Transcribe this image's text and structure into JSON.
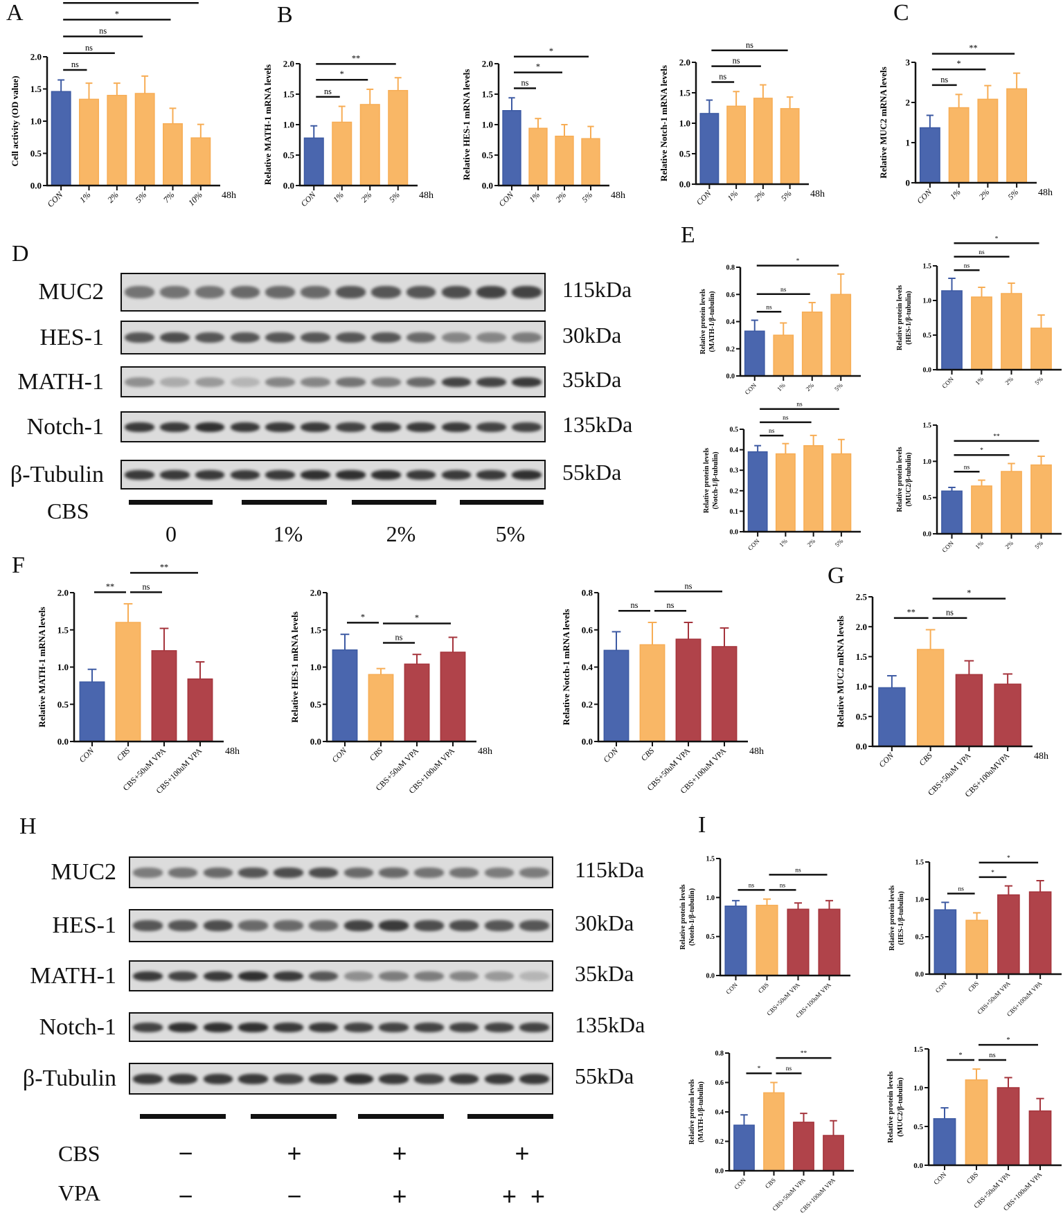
{
  "panel_labels": {
    "A": "A",
    "B": "B",
    "C": "C",
    "D": "D",
    "E": "E",
    "F": "F",
    "G": "G",
    "H": "H",
    "I": "I"
  },
  "colors": {
    "control": "#4a66ae",
    "cbs": "#f9b766",
    "vpa": "#b0434a"
  },
  "chart_data": [
    {
      "id": "A-cell-activity",
      "type": "bar",
      "ylabel": [
        "Cell activity  (OD value)"
      ],
      "categories": [
        "CON",
        "1%",
        "2%",
        "5%",
        "7%",
        "10%"
      ],
      "values": [
        1.46,
        1.34,
        1.4,
        1.43,
        0.96,
        0.74
      ],
      "errors": [
        0.18,
        0.25,
        0.19,
        0.27,
        0.24,
        0.21
      ],
      "bar_colors": [
        "control",
        "cbs",
        "cbs",
        "cbs",
        "cbs",
        "cbs"
      ],
      "ylim": [
        0,
        2
      ],
      "yticks": [
        0,
        0.5,
        1,
        1.5,
        2
      ],
      "ytick_labels": [
        "0.0",
        "0.5",
        "1.0",
        "1.5",
        "2.0"
      ],
      "brackets": [
        [
          0,
          1,
          "ns"
        ],
        [
          0,
          2,
          "ns"
        ],
        [
          0,
          3,
          "ns"
        ],
        [
          0,
          4,
          "*"
        ],
        [
          0,
          5,
          "**"
        ]
      ],
      "suffix": "48h"
    },
    {
      "id": "B-math1-mrna",
      "type": "bar",
      "ylabel": [
        "Relative MATH-1 mRNA levels"
      ],
      "categories": [
        "CON",
        "1%",
        "2%",
        "5%"
      ],
      "values": [
        0.78,
        1.04,
        1.33,
        1.56
      ],
      "errors": [
        0.2,
        0.26,
        0.25,
        0.21
      ],
      "bar_colors": [
        "control",
        "cbs",
        "cbs",
        "cbs"
      ],
      "ylim": [
        0,
        2
      ],
      "yticks": [
        0,
        0.5,
        1,
        1.5,
        2
      ],
      "ytick_labels": [
        "0.0",
        "0.5",
        "1.0",
        "1.5",
        "2.0"
      ],
      "brackets": [
        [
          0,
          1,
          "ns"
        ],
        [
          0,
          2,
          "*"
        ],
        [
          0,
          3,
          "**"
        ]
      ],
      "suffix": "48h"
    },
    {
      "id": "B-hes1-mrna",
      "type": "bar",
      "ylabel": [
        "Relative  HES-1 mRNA levels"
      ],
      "categories": [
        "CON",
        "1%",
        "2%",
        "5%"
      ],
      "values": [
        1.23,
        0.94,
        0.81,
        0.77
      ],
      "errors": [
        0.21,
        0.16,
        0.19,
        0.2
      ],
      "bar_colors": [
        "control",
        "cbs",
        "cbs",
        "cbs"
      ],
      "ylim": [
        0,
        2
      ],
      "yticks": [
        0,
        0.5,
        1,
        1.5,
        2
      ],
      "ytick_labels": [
        "0.0",
        "0.5",
        "1.0",
        "1.5",
        "2.0"
      ],
      "brackets": [
        [
          0,
          1,
          "ns"
        ],
        [
          0,
          2,
          "*"
        ],
        [
          0,
          3,
          "*"
        ]
      ],
      "suffix": "48h"
    },
    {
      "id": "B-notch1-mrna",
      "type": "bar",
      "ylabel": [
        "Relative  Notch-1 mRNA levels"
      ],
      "categories": [
        "CON",
        "1%",
        "2%",
        "5%"
      ],
      "values": [
        1.16,
        1.28,
        1.41,
        1.24
      ],
      "errors": [
        0.22,
        0.24,
        0.22,
        0.19
      ],
      "bar_colors": [
        "control",
        "cbs",
        "cbs",
        "cbs"
      ],
      "ylim": [
        0,
        2
      ],
      "yticks": [
        0,
        0.5,
        1,
        1.5,
        2
      ],
      "ytick_labels": [
        "0.0",
        "0.5",
        "1.0",
        "1.5",
        "2.0"
      ],
      "brackets": [
        [
          0,
          1,
          "ns"
        ],
        [
          0,
          2,
          "ns"
        ],
        [
          0,
          3,
          "ns"
        ]
      ],
      "suffix": "48h"
    },
    {
      "id": "C-muc2-mrna",
      "type": "bar",
      "ylabel": [
        "Relative  MUC2 mRNA levels"
      ],
      "categories": [
        "CON",
        "1%",
        "2%",
        "5%"
      ],
      "values": [
        1.37,
        1.87,
        2.08,
        2.34
      ],
      "errors": [
        0.31,
        0.33,
        0.34,
        0.39
      ],
      "bar_colors": [
        "control",
        "cbs",
        "cbs",
        "cbs"
      ],
      "ylim": [
        0,
        3
      ],
      "yticks": [
        0,
        1,
        2,
        3
      ],
      "ytick_labels": [
        "0",
        "1",
        "2",
        "3"
      ],
      "brackets": [
        [
          0,
          1,
          "ns"
        ],
        [
          0,
          2,
          "*"
        ],
        [
          0,
          3,
          "**"
        ]
      ],
      "suffix": "48h"
    },
    {
      "id": "E-math1-protein",
      "type": "bar",
      "ylabel": [
        "Relative  protein  levels",
        "(MATH-1/β-tubulin)"
      ],
      "categories": [
        "CON",
        "1%",
        "2%",
        "5%"
      ],
      "values": [
        0.33,
        0.3,
        0.47,
        0.6
      ],
      "errors": [
        0.08,
        0.09,
        0.07,
        0.15
      ],
      "bar_colors": [
        "control",
        "cbs",
        "cbs",
        "cbs"
      ],
      "ylim": [
        0,
        0.8
      ],
      "yticks": [
        0,
        0.2,
        0.4,
        0.6,
        0.8
      ],
      "ytick_labels": [
        "0.0",
        "0.2",
        "0.4",
        "0.6",
        "0.8"
      ],
      "brackets": [
        [
          0,
          1,
          "ns"
        ],
        [
          0,
          2,
          "ns"
        ],
        [
          0,
          3,
          "*"
        ]
      ],
      "suffix": ""
    },
    {
      "id": "E-hes1-protein",
      "type": "bar",
      "ylabel": [
        "Relative  protein  levels",
        "(HES-1/β-tubulin)"
      ],
      "categories": [
        "CON",
        "1%",
        "2%",
        "5%"
      ],
      "values": [
        1.14,
        1.05,
        1.1,
        0.6
      ],
      "errors": [
        0.18,
        0.14,
        0.15,
        0.19
      ],
      "bar_colors": [
        "control",
        "cbs",
        "cbs",
        "cbs"
      ],
      "ylim": [
        0,
        1.5
      ],
      "yticks": [
        0,
        0.5,
        1,
        1.5
      ],
      "ytick_labels": [
        "0.0",
        "0.5",
        "1.0",
        "1.5"
      ],
      "brackets": [
        [
          0,
          1,
          "ns"
        ],
        [
          0,
          2,
          "ns"
        ],
        [
          0,
          3,
          "*"
        ]
      ],
      "suffix": ""
    },
    {
      "id": "E-notch1-protein",
      "type": "bar",
      "ylabel": [
        "Relative  protein  levels",
        "(Notch-1/β-tubulin)"
      ],
      "categories": [
        "CON",
        "1%",
        "2%",
        "5%"
      ],
      "values": [
        0.39,
        0.38,
        0.42,
        0.38
      ],
      "errors": [
        0.03,
        0.05,
        0.05,
        0.07
      ],
      "bar_colors": [
        "control",
        "cbs",
        "cbs",
        "cbs"
      ],
      "ylim": [
        0,
        0.5
      ],
      "yticks": [
        0,
        0.1,
        0.2,
        0.3,
        0.4,
        0.5
      ],
      "ytick_labels": [
        "0.0",
        "0.1",
        "0.2",
        "0.3",
        "0.4",
        "0.5"
      ],
      "brackets": [
        [
          0,
          1,
          "ns"
        ],
        [
          0,
          2,
          "ns"
        ],
        [
          0,
          3,
          "ns"
        ]
      ],
      "suffix": ""
    },
    {
      "id": "E-muc2-protein",
      "type": "bar",
      "ylabel": [
        "Relative  protein  levels",
        "(MUC2/β-tubulin)"
      ],
      "categories": [
        "CON",
        "1%",
        "2%",
        "5%"
      ],
      "values": [
        0.59,
        0.66,
        0.86,
        0.95
      ],
      "errors": [
        0.05,
        0.08,
        0.11,
        0.12
      ],
      "bar_colors": [
        "control",
        "cbs",
        "cbs",
        "cbs"
      ],
      "ylim": [
        0,
        1.5
      ],
      "yticks": [
        0,
        0.5,
        1,
        1.5
      ],
      "ytick_labels": [
        "0.0",
        "0.5",
        "1.0",
        "1.5"
      ],
      "brackets": [
        [
          0,
          1,
          "ns"
        ],
        [
          0,
          2,
          "*"
        ],
        [
          0,
          3,
          "**"
        ]
      ],
      "suffix": ""
    },
    {
      "id": "F-math1-mrna",
      "type": "bar",
      "ylabel": [
        "Relative  MATH-1 mRNA levels"
      ],
      "categories": [
        "CON",
        "CBS",
        "CBS+50uM VPA",
        "CBS+100uM VPA"
      ],
      "values": [
        0.8,
        1.6,
        1.22,
        0.84
      ],
      "errors": [
        0.17,
        0.25,
        0.3,
        0.23
      ],
      "bar_colors": [
        "control",
        "cbs",
        "vpa",
        "vpa"
      ],
      "ylim": [
        0,
        2
      ],
      "yticks": [
        0,
        0.5,
        1,
        1.5,
        2
      ],
      "ytick_labels": [
        "0.0",
        "0.5",
        "1.0",
        "1.5",
        "2.0"
      ],
      "brackets": [
        [
          0,
          1,
          "**"
        ],
        [
          1,
          2,
          "ns"
        ],
        [
          1,
          3,
          "**"
        ]
      ],
      "suffix": "48h"
    },
    {
      "id": "F-hes1-mrna",
      "type": "bar",
      "ylabel": [
        "Relative  HES-1 mRNA levels"
      ],
      "categories": [
        "CON",
        "CBS",
        "CBS+50uM VPA",
        "CBS+100uM VPA"
      ],
      "values": [
        1.23,
        0.9,
        1.04,
        1.2
      ],
      "errors": [
        0.21,
        0.08,
        0.13,
        0.2
      ],
      "bar_colors": [
        "control",
        "cbs",
        "vpa",
        "vpa"
      ],
      "ylim": [
        0,
        2
      ],
      "yticks": [
        0,
        0.5,
        1,
        1.5,
        2
      ],
      "ytick_labels": [
        "0.0",
        "0.5",
        "1.0",
        "1.5",
        "2.0"
      ],
      "brackets": [
        [
          0,
          1,
          "*"
        ],
        [
          1,
          2,
          "ns"
        ],
        [
          1,
          3,
          "*"
        ]
      ],
      "suffix": "48h"
    },
    {
      "id": "F-notch1-mrna",
      "type": "bar",
      "ylabel": [
        "Relative  Notch-1 mRNA levels"
      ],
      "categories": [
        "CON",
        "CBS",
        "CBS+50uM VPA",
        "CBS+100uM VPA"
      ],
      "values": [
        0.49,
        0.52,
        0.55,
        0.51
      ],
      "errors": [
        0.1,
        0.12,
        0.09,
        0.1
      ],
      "bar_colors": [
        "control",
        "cbs",
        "vpa",
        "vpa"
      ],
      "ylim": [
        0,
        0.8
      ],
      "yticks": [
        0,
        0.2,
        0.4,
        0.6,
        0.8
      ],
      "ytick_labels": [
        "0.0",
        "0.2",
        "0.4",
        "0.6",
        "0.8"
      ],
      "brackets": [
        [
          0,
          1,
          "ns"
        ],
        [
          1,
          2,
          "ns"
        ],
        [
          1,
          3,
          "ns"
        ]
      ],
      "suffix": "48h"
    },
    {
      "id": "G-muc2-mrna",
      "type": "bar",
      "ylabel": [
        "Relative  MUC2 mRNA levels"
      ],
      "categories": [
        "CON",
        "CBS",
        "CBS+50uM VPA",
        "CBS+100uMVPA"
      ],
      "values": [
        0.98,
        1.62,
        1.2,
        1.04
      ],
      "errors": [
        0.2,
        0.33,
        0.23,
        0.17
      ],
      "bar_colors": [
        "control",
        "cbs",
        "vpa",
        "vpa"
      ],
      "ylim": [
        0,
        2.5
      ],
      "yticks": [
        0,
        0.5,
        1,
        1.5,
        2,
        2.5
      ],
      "ytick_labels": [
        "0.0",
        "0.5",
        "1.0",
        "1.5",
        "2.0",
        "2.5"
      ],
      "brackets": [
        [
          0,
          1,
          "**"
        ],
        [
          1,
          2,
          "ns"
        ],
        [
          1,
          3,
          "*"
        ]
      ],
      "suffix": "48h"
    },
    {
      "id": "I-notch1-protein",
      "type": "bar",
      "ylabel": [
        "Relative  protein  levels",
        "(Noteh-1/β-tubulin)"
      ],
      "categories": [
        "CON",
        "CBS",
        "CBS+50uM VPA",
        "CBS+100uM VPA"
      ],
      "values": [
        0.89,
        0.9,
        0.85,
        0.85
      ],
      "errors": [
        0.07,
        0.08,
        0.08,
        0.11
      ],
      "bar_colors": [
        "control",
        "cbs",
        "vpa",
        "vpa"
      ],
      "ylim": [
        0,
        1.5
      ],
      "yticks": [
        0,
        0.5,
        1,
        1.5
      ],
      "ytick_labels": [
        "0.0",
        "0.5",
        "1.0",
        "1.5"
      ],
      "brackets": [
        [
          0,
          1,
          "ns"
        ],
        [
          1,
          2,
          "ns"
        ],
        [
          1,
          3,
          "ns"
        ]
      ],
      "suffix": ""
    },
    {
      "id": "I-hes1-protein",
      "type": "bar",
      "ylabel": [
        "Relative  protein  levels",
        "(HES-1/β-tubulin)"
      ],
      "categories": [
        "CON",
        "CBS",
        "CBS+50uM VPA",
        "CBS+100uM VPA"
      ],
      "values": [
        0.86,
        0.72,
        1.06,
        1.1
      ],
      "errors": [
        0.1,
        0.1,
        0.12,
        0.15
      ],
      "bar_colors": [
        "control",
        "cbs",
        "vpa",
        "vpa"
      ],
      "ylim": [
        0,
        1.5
      ],
      "yticks": [
        0,
        0.5,
        1,
        1.5
      ],
      "ytick_labels": [
        "0.0",
        "0.5",
        "1.0",
        "1.5"
      ],
      "brackets": [
        [
          0,
          1,
          "ns"
        ],
        [
          1,
          2,
          "*"
        ],
        [
          1,
          3,
          "*"
        ]
      ],
      "suffix": ""
    },
    {
      "id": "I-math1-protein",
      "type": "bar",
      "ylabel": [
        "Relative  protein  levels",
        "(MATH-1/β-tubulin)"
      ],
      "categories": [
        "CON",
        "CBS",
        "CBS+50uM VPA",
        "CBS+100uM VPA"
      ],
      "values": [
        0.31,
        0.53,
        0.33,
        0.24
      ],
      "errors": [
        0.07,
        0.07,
        0.06,
        0.1
      ],
      "bar_colors": [
        "control",
        "cbs",
        "vpa",
        "vpa"
      ],
      "ylim": [
        0,
        0.8
      ],
      "yticks": [
        0,
        0.2,
        0.4,
        0.6,
        0.8
      ],
      "ytick_labels": [
        "0.0",
        "0.2",
        "0.4",
        "0.6",
        "0.8"
      ],
      "brackets": [
        [
          0,
          1,
          "*"
        ],
        [
          1,
          2,
          "ns"
        ],
        [
          1,
          3,
          "**"
        ]
      ],
      "suffix": ""
    },
    {
      "id": "I-muc2-protein",
      "type": "bar",
      "ylabel": [
        "Relative  protein  levels",
        "(MUC2/β-tubulin)"
      ],
      "categories": [
        "CON",
        "CBS",
        "CBS+50uM VPA",
        "CBS+100uM VPA"
      ],
      "values": [
        0.6,
        1.1,
        1.0,
        0.7
      ],
      "errors": [
        0.14,
        0.14,
        0.13,
        0.16
      ],
      "bar_colors": [
        "control",
        "cbs",
        "vpa",
        "vpa"
      ],
      "ylim": [
        0,
        1.5
      ],
      "yticks": [
        0,
        0.5,
        1,
        1.5
      ],
      "ytick_labels": [
        "0.0",
        "0.5",
        "1.0",
        "1.5"
      ],
      "brackets": [
        [
          0,
          1,
          "*"
        ],
        [
          1,
          2,
          "ns"
        ],
        [
          1,
          3,
          "*"
        ]
      ],
      "suffix": ""
    }
  ],
  "blots": {
    "D": {
      "rows": [
        {
          "protein": "MUC2",
          "size": "115kDa"
        },
        {
          "protein": "HES-1",
          "size": "30kDa"
        },
        {
          "protein": "MATH-1",
          "size": "35kDa"
        },
        {
          "protein": "Notch-1",
          "size": "135kDa"
        },
        {
          "protein": "β-Tubulin",
          "size": "55kDa"
        }
      ],
      "treatment_label": "CBS",
      "groups": [
        "0",
        "1%",
        "2%",
        "5%"
      ]
    },
    "H": {
      "rows": [
        {
          "protein": "MUC2",
          "size": "115kDa"
        },
        {
          "protein": "HES-1",
          "size": "30kDa"
        },
        {
          "protein": "MATH-1",
          "size": "35kDa"
        },
        {
          "protein": "Notch-1",
          "size": "135kDa"
        },
        {
          "protein": "β-Tubulin",
          "size": "55kDa"
        }
      ],
      "cbs_label": "CBS",
      "vpa_label": "VPA",
      "cbs_signs": [
        "−",
        "+",
        "+",
        "+"
      ],
      "vpa_signs": [
        "−",
        "−",
        "+",
        "+  +"
      ]
    }
  }
}
